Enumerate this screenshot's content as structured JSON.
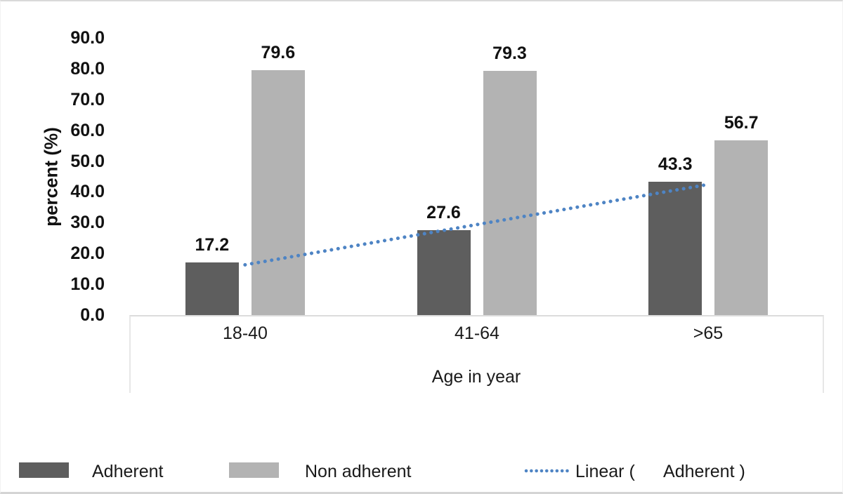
{
  "chart_data": {
    "type": "bar",
    "title": "",
    "categories": [
      "18-40",
      "41-64",
      ">65"
    ],
    "series": [
      {
        "name": "Adherent",
        "color": "#5e5e5e",
        "values": [
          17.2,
          27.6,
          43.3
        ]
      },
      {
        "name": "Non adherent",
        "color": "#b3b3b3",
        "values": [
          79.6,
          79.3,
          56.7
        ]
      }
    ],
    "trendline": {
      "label": "Linear (      Adherent )",
      "series": "Adherent",
      "color": "#4e84c4",
      "style": "dotted"
    },
    "xlabel": "Age in year",
    "ylabel": "percent (%)",
    "ylim": [
      0,
      90
    ],
    "ytick_step": 10,
    "ytick_labels": [
      "0.0",
      "10.0",
      "20.0",
      "30.0",
      "40.0",
      "50.0",
      "60.0",
      "70.0",
      "80.0",
      "90.0"
    ],
    "grid": false,
    "legend_position": "bottom",
    "value_labels": true
  }
}
